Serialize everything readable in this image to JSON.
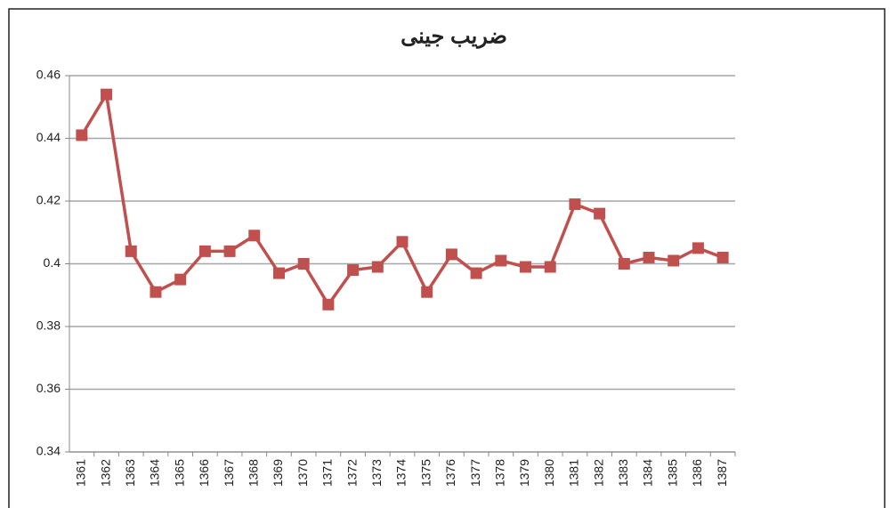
{
  "chart_data": {
    "type": "line",
    "title": "ضریب جینی",
    "categories": [
      "1361",
      "1362",
      "1363",
      "1364",
      "1365",
      "1366",
      "1367",
      "1368",
      "1369",
      "1370",
      "1371",
      "1372",
      "1373",
      "1374",
      "1375",
      "1376",
      "1377",
      "1378",
      "1379",
      "1380",
      "1381",
      "1382",
      "1383",
      "1384",
      "1385",
      "1386",
      "1387"
    ],
    "values": [
      0.441,
      0.454,
      0.404,
      0.391,
      0.395,
      0.404,
      0.404,
      0.409,
      0.397,
      0.4,
      0.387,
      0.398,
      0.399,
      0.407,
      0.391,
      0.403,
      0.397,
      0.401,
      0.399,
      0.399,
      0.419,
      0.416,
      0.4,
      0.402,
      0.401,
      0.405,
      0.402
    ],
    "color": "#c0504d",
    "ylim": [
      0.34,
      0.46
    ],
    "yticks": [
      0.34,
      0.36,
      0.38,
      0.4,
      0.42,
      0.44,
      0.46
    ],
    "grid": true
  }
}
